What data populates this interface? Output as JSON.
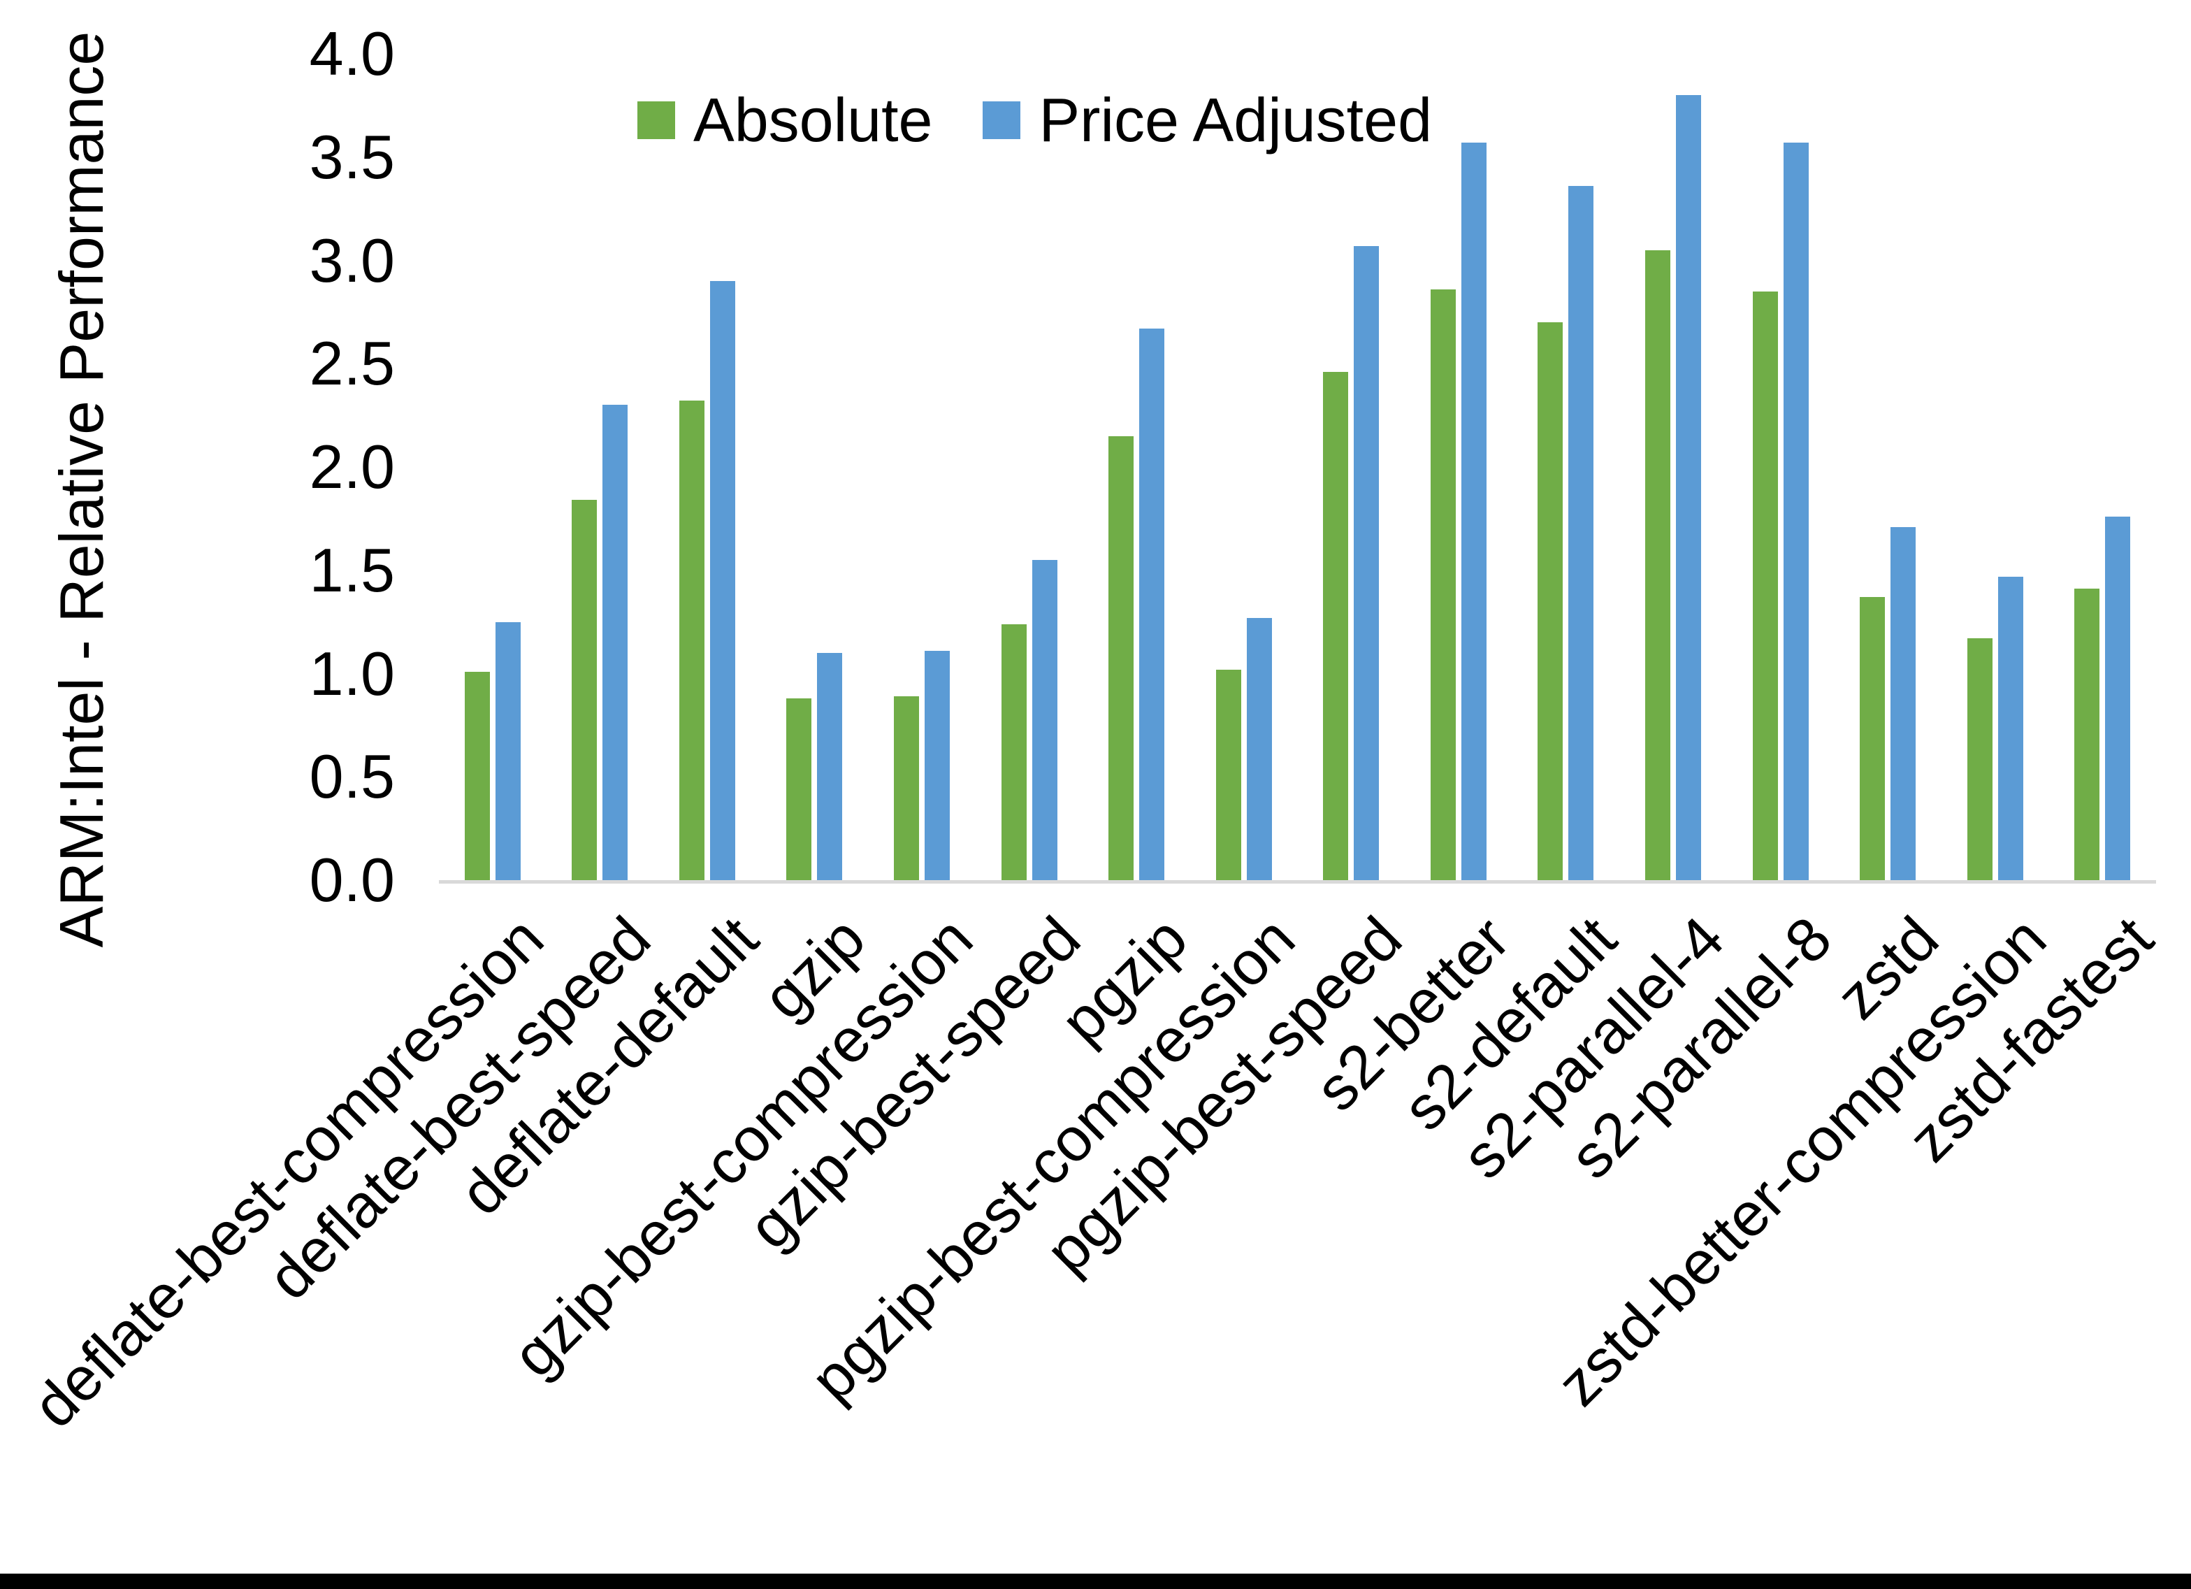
{
  "chart_data": {
    "type": "bar",
    "title": "",
    "xlabel": "",
    "ylabel": "ARM:Intel - Relative Performance",
    "ylim": [
      0,
      4
    ],
    "ytick_step": 0.5,
    "yticks": [
      "0.0",
      "0.5",
      "1.0",
      "1.5",
      "2.0",
      "2.5",
      "3.0",
      "3.5",
      "4.0"
    ],
    "grid": false,
    "legend_position": "top-center",
    "categories": [
      "deflate-best-compression",
      "deflate-best-speed",
      "deflate-default",
      "gzip",
      "gzip-best-compression",
      "gzip-best-speed",
      "pgzip",
      "pgzip-best-compression",
      "pgzip-best-speed",
      "s2-better",
      "s2-default",
      "s2-parallel-4",
      "s2-parallel-8",
      "zstd",
      "zstd-better-compression",
      "zstd-fastest"
    ],
    "series": [
      {
        "name": "Absolute",
        "color": "#70AD47",
        "values": [
          1.01,
          1.84,
          2.32,
          0.88,
          0.89,
          1.24,
          2.15,
          1.02,
          2.46,
          2.86,
          2.7,
          3.05,
          2.85,
          1.37,
          1.17,
          1.41
        ]
      },
      {
        "name": "Price Adjusted",
        "color": "#5B9BD5",
        "values": [
          1.25,
          2.3,
          2.9,
          1.1,
          1.11,
          1.55,
          2.67,
          1.27,
          3.07,
          3.57,
          3.36,
          3.8,
          3.57,
          1.71,
          1.47,
          1.76
        ]
      }
    ]
  },
  "colors": {
    "axis_line": "#d9d9d9",
    "text": "#000000",
    "background": "#ffffff",
    "bottom_border": "#000000"
  }
}
